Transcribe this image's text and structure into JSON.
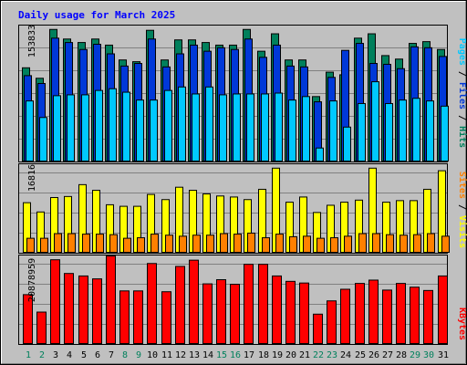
{
  "title": "Daily usage for March 2025",
  "colors": {
    "background": "#c0c0c0",
    "hits": "#00805c",
    "files": "#0038d8",
    "pages": "#00c8ff",
    "visits": "#ffff00",
    "sites": "#ff8000",
    "kbytes": "#ff0000",
    "title": "#0000ff",
    "weekend_label": "#00805c",
    "weekday_label": "#000000",
    "grid": "#808080"
  },
  "chart_data": [
    {
      "type": "bar",
      "panel": "hits-files-pages",
      "ymax_label": "153833",
      "ylim": [
        0,
        153833
      ],
      "legend_right": [
        "Pages",
        "Files",
        "Hits"
      ],
      "categories": [
        "1",
        "2",
        "3",
        "4",
        "5",
        "6",
        "7",
        "8",
        "9",
        "10",
        "11",
        "12",
        "13",
        "14",
        "15",
        "16",
        "17",
        "18",
        "19",
        "20",
        "21",
        "22",
        "23",
        "24",
        "25",
        "26",
        "27",
        "28",
        "29",
        "30",
        "31"
      ],
      "weekend": [
        true,
        true,
        false,
        false,
        false,
        false,
        false,
        true,
        true,
        false,
        false,
        false,
        false,
        false,
        true,
        true,
        false,
        false,
        false,
        false,
        false,
        true,
        true,
        false,
        false,
        false,
        false,
        false,
        true,
        true,
        false
      ],
      "series": [
        {
          "name": "Hits",
          "values": [
            108000,
            96000,
            152000,
            141000,
            137000,
            141000,
            134000,
            117000,
            115000,
            151000,
            117000,
            140000,
            140000,
            137000,
            134000,
            134000,
            152000,
            127000,
            147000,
            117000,
            117000,
            75000,
            103000,
            100000,
            142000,
            147000,
            122000,
            118000,
            136000,
            138000,
            129000
          ]
        },
        {
          "name": "Files",
          "values": [
            99000,
            90000,
            142000,
            137000,
            129000,
            135000,
            124000,
            110000,
            113000,
            141000,
            109000,
            124000,
            134000,
            127000,
            131000,
            129000,
            141000,
            120000,
            134000,
            110000,
            109000,
            69000,
            97000,
            128000,
            136000,
            113000,
            112000,
            107000,
            132000,
            131000,
            121000
          ]
        },
        {
          "name": "Pages",
          "values": [
            70000,
            51000,
            76000,
            77000,
            77000,
            82000,
            84000,
            80000,
            71000,
            71000,
            82000,
            86000,
            78000,
            86000,
            77000,
            78000,
            78000,
            78000,
            79000,
            71000,
            75000,
            16000,
            70000,
            40000,
            67000,
            92000,
            67000,
            71000,
            73000,
            70000,
            64000
          ]
        }
      ]
    },
    {
      "type": "bar",
      "panel": "visits-sites",
      "ymax_label": "16816",
      "ylim": [
        0,
        16816
      ],
      "legend_right": [
        "Sites",
        "Visits"
      ],
      "categories": [
        "1",
        "2",
        "3",
        "4",
        "5",
        "6",
        "7",
        "8",
        "9",
        "10",
        "11",
        "12",
        "13",
        "14",
        "15",
        "16",
        "17",
        "18",
        "19",
        "20",
        "21",
        "22",
        "23",
        "24",
        "25",
        "26",
        "27",
        "28",
        "29",
        "30",
        "31"
      ],
      "series": [
        {
          "name": "Visits",
          "values": [
            9800,
            8000,
            10800,
            11000,
            13300,
            12200,
            9400,
            9100,
            9100,
            11400,
            10400,
            12800,
            12200,
            11500,
            11100,
            10900,
            10400,
            12400,
            16500,
            9900,
            10900,
            7900,
            9300,
            9900,
            10300,
            16500,
            9900,
            10200,
            10200,
            12400,
            16000
          ]
        },
        {
          "name": "Sites",
          "values": [
            2900,
            2900,
            3800,
            3800,
            3700,
            3700,
            3600,
            2900,
            3000,
            3700,
            3500,
            3300,
            3500,
            3500,
            3800,
            3700,
            3900,
            3000,
            3700,
            3200,
            3300,
            2900,
            3000,
            3300,
            3800,
            3800,
            3600,
            3500,
            3600,
            3800,
            3300
          ]
        }
      ]
    },
    {
      "type": "bar",
      "panel": "kbytes",
      "ymax_label": "20878959",
      "ylim": [
        0,
        20878959
      ],
      "legend_right": [
        "KBytes"
      ],
      "categories": [
        "1",
        "2",
        "3",
        "4",
        "5",
        "6",
        "7",
        "8",
        "9",
        "10",
        "11",
        "12",
        "13",
        "14",
        "15",
        "16",
        "17",
        "18",
        "19",
        "20",
        "21",
        "22",
        "23",
        "24",
        "25",
        "26",
        "27",
        "28",
        "29",
        "30",
        "31"
      ],
      "series": [
        {
          "name": "KBytes",
          "values": [
            12000,
            7800,
            20400,
            17100,
            16500,
            15800,
            21300,
            12900,
            12900,
            19500,
            12700,
            18800,
            20300,
            14600,
            15600,
            14500,
            19300,
            19300,
            16500,
            15200,
            14800,
            7300,
            10500,
            13300,
            14700,
            15500,
            13100,
            14700,
            13800,
            13000,
            16500
          ]
        }
      ]
    }
  ]
}
